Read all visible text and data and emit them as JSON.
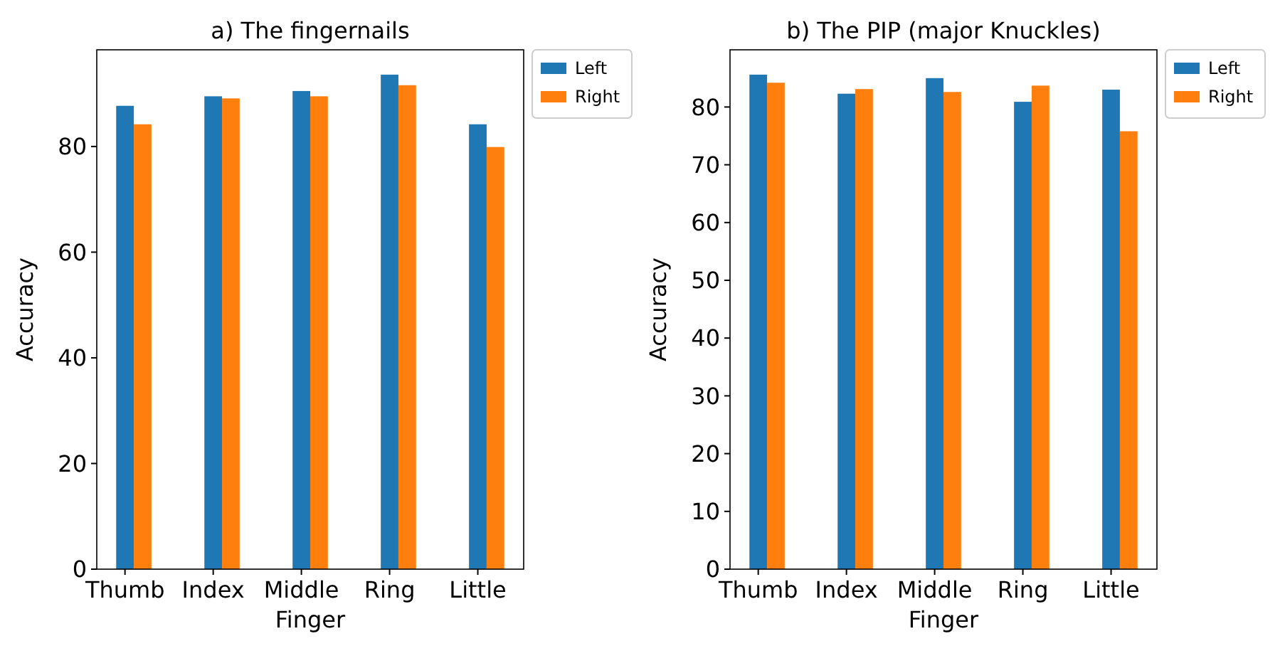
{
  "chart_data": [
    {
      "type": "bar",
      "title": "a) The fingernails",
      "xlabel": "Finger",
      "ylabel": "Accuracy",
      "categories": [
        "Thumb",
        "Index",
        "Middle",
        "Ring",
        "Little"
      ],
      "series": [
        {
          "name": "Left",
          "color": "#1f77b4",
          "values": [
            87.7,
            89.5,
            90.5,
            93.6,
            84.2
          ]
        },
        {
          "name": "Right",
          "color": "#ff7f0e",
          "values": [
            84.2,
            89.1,
            89.5,
            91.6,
            79.9
          ]
        }
      ],
      "ylim": [
        0,
        98.3
      ],
      "yticks": [
        0,
        20,
        40,
        60,
        80
      ],
      "legend": "top right",
      "grid": false
    },
    {
      "type": "bar",
      "title": "b) The PIP (major Knuckles)",
      "xlabel": "Finger",
      "ylabel": "Accuracy",
      "categories": [
        "Thumb",
        "Index",
        "Middle",
        "Ring",
        "Little"
      ],
      "series": [
        {
          "name": "Left",
          "color": "#1f77b4",
          "values": [
            85.6,
            82.3,
            85.0,
            80.9,
            83.0
          ]
        },
        {
          "name": "Right",
          "color": "#ff7f0e",
          "values": [
            84.2,
            83.1,
            82.6,
            83.7,
            75.8
          ]
        }
      ],
      "ylim": [
        0,
        89.9
      ],
      "yticks": [
        0,
        10,
        20,
        30,
        40,
        50,
        60,
        70,
        80
      ],
      "legend": "top right",
      "grid": false
    }
  ]
}
